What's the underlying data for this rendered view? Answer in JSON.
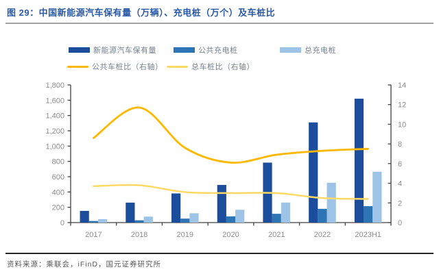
{
  "header": {
    "title": "图 29：中国新能源汽车保有量（万辆）、充电桩（万个）及车桩比"
  },
  "legend": {
    "bars": [
      {
        "label": "新能源汽车保有量",
        "color": "#1b4d9c"
      },
      {
        "label": "公共充电桩",
        "color": "#2e75b6"
      },
      {
        "label": "总充电桩",
        "color": "#9dc3e6"
      }
    ],
    "lines": [
      {
        "label": "公共车桩比（右轴）",
        "color": "#ffb800"
      },
      {
        "label": "总车桩比（右轴）",
        "color": "#ffd966"
      }
    ]
  },
  "chart_data": {
    "type": "bar",
    "subtype": "grouped bars with two smoothed lines on secondary axis",
    "title": "中国新能源汽车保有量（万辆）、充电桩（万个）及车桩比",
    "categories": [
      "2017",
      "2018",
      "2019",
      "2020",
      "2021",
      "2022",
      "2023H1"
    ],
    "bar_series": [
      {
        "name": "新能源汽车保有量",
        "color": "#1b4d9c",
        "axis": "left",
        "values": [
          153,
          261,
          381,
          492,
          784,
          1310,
          1620
        ]
      },
      {
        "name": "公共充电桩",
        "color": "#2e75b6",
        "axis": "left",
        "values": [
          21,
          30,
          52,
          81,
          115,
          180,
          215
        ]
      },
      {
        "name": "总充电桩",
        "color": "#9dc3e6",
        "axis": "left",
        "values": [
          45,
          78,
          122,
          168,
          262,
          521,
          665
        ]
      }
    ],
    "line_series": [
      {
        "name": "公共车桩比（右轴）",
        "color": "#ffb800",
        "axis": "right",
        "width": 2.8,
        "values": [
          8.6,
          11.7,
          7.6,
          6.1,
          6.9,
          7.3,
          7.5
        ]
      },
      {
        "name": "总车桩比（右轴）",
        "color": "#ffd966",
        "axis": "right",
        "width": 2.5,
        "values": [
          3.7,
          3.8,
          3.1,
          3.0,
          3.0,
          2.5,
          2.4
        ]
      }
    ],
    "left_axis": {
      "min": 0,
      "max": 1800,
      "step": 200,
      "tick_labels": [
        "0",
        "200",
        "400",
        "600",
        "800",
        "1,000",
        "1,200",
        "1,400",
        "1,600",
        "1,800"
      ]
    },
    "right_axis": {
      "min": 0,
      "max": 14,
      "step": 2,
      "tick_labels": [
        "0",
        "2",
        "4",
        "6",
        "8",
        "10",
        "12",
        "14"
      ]
    },
    "grid": false,
    "legend_position": "top",
    "axis_text_color": "#8c8c8c",
    "axis_line_color": "#404040"
  },
  "footer": {
    "source": "资料来源：乘联会，iFinD，国元证券研究所"
  }
}
